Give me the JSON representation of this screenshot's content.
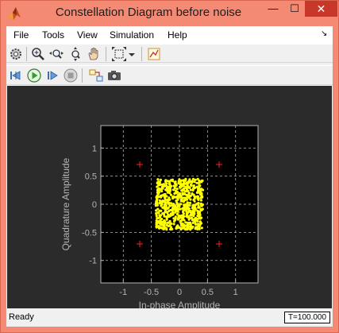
{
  "window": {
    "title": "Constellation Diagram before noise",
    "minimize_glyph": "—",
    "maximize_glyph": "☐",
    "close_glyph": "✕"
  },
  "menu": {
    "items": [
      "File",
      "Tools",
      "View",
      "Simulation",
      "Help"
    ],
    "dock_glyph": "↘"
  },
  "toolbar": {
    "icons": [
      "parameters-icon",
      "zoom-in-icon",
      "zoom-x-icon",
      "zoom-y-icon",
      "pan-icon",
      "autoscale-icon",
      "autoscale-dropdown-icon",
      "legend-icon"
    ]
  },
  "sim_toolbar": {
    "icons": [
      "step-back-icon",
      "run-icon",
      "step-forward-icon",
      "stop-icon",
      "highlight-block-icon",
      "snapshot-icon"
    ]
  },
  "status": {
    "text": "Ready",
    "time": "T=100.000"
  },
  "colors": {
    "plot_background": "#000000",
    "panel_background": "#2b2b2b",
    "grid": "#b4b4b4",
    "axis_text": "#b4b4b4",
    "points": "#ffff00",
    "reference": "#ff2020"
  },
  "chart_data": {
    "type": "scatter",
    "title": "",
    "xlabel": "In-phase Amplitude",
    "ylabel": "Quadrature Amplitude",
    "xlim": [
      -1.4,
      1.4
    ],
    "ylim": [
      -1.4,
      1.4
    ],
    "xticks": [
      -1,
      -0.5,
      0,
      0.5,
      1
    ],
    "yticks": [
      -1,
      -0.5,
      0,
      0.5,
      1
    ],
    "xtick_labels": [
      "-1",
      "-0.5",
      "0",
      "0.5",
      "1"
    ],
    "ytick_labels": [
      "-1",
      "-0.5",
      "0",
      "0.5",
      "1"
    ],
    "grid": true,
    "reference_points": [
      {
        "x": -0.707,
        "y": 0.707
      },
      {
        "x": 0.707,
        "y": 0.707
      },
      {
        "x": -0.707,
        "y": -0.707
      },
      {
        "x": 0.707,
        "y": -0.707
      }
    ],
    "signal_region": {
      "x_range": [
        -0.42,
        0.42
      ],
      "y_range": [
        -0.45,
        0.45
      ]
    }
  }
}
